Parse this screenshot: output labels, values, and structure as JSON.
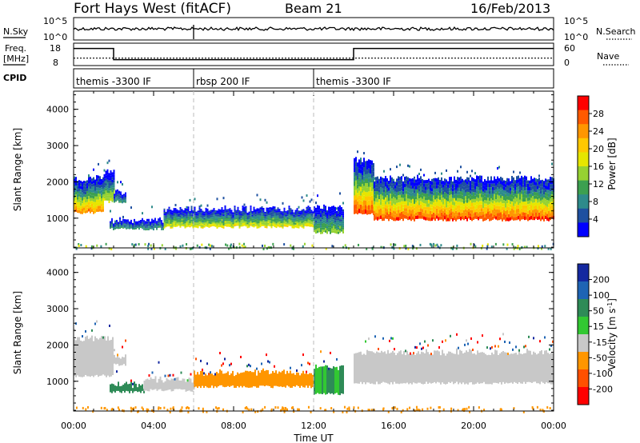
{
  "header": {
    "station": "Fort Hays West (fitACF)",
    "beam": "Beam 21",
    "date": "16/Feb/2013"
  },
  "nsky_panel": {
    "left_label": "N.Sky",
    "right_label": "N.Search",
    "left_ticks": [
      "10^5",
      "10^0"
    ],
    "right_ticks": [
      "10^5",
      "10^0"
    ]
  },
  "freq_panel": {
    "left_label_1": "Freq.",
    "left_label_2": "[MHz]",
    "right_label": "Nave",
    "left_ticks": [
      "18",
      "8"
    ],
    "right_ticks": [
      "60",
      "0"
    ]
  },
  "cpid_panel": {
    "label": "CPID",
    "segments": [
      {
        "start_hour": 0,
        "name": "themis -3300 IF"
      },
      {
        "start_hour": 6,
        "name": "rbsp 200 IF"
      },
      {
        "start_hour": 12,
        "name": "themis -3300 IF"
      }
    ]
  },
  "power_colorbar": {
    "label": "Power [dB]",
    "ticks": [
      "28",
      "24",
      "20",
      "16",
      "12",
      "8",
      "4"
    ],
    "colors": [
      "#ff0000",
      "#ff5a00",
      "#ff9600",
      "#ffc800",
      "#e6e600",
      "#96d232",
      "#3ca050",
      "#2e8b8b",
      "#1e50a0",
      "#0000ff"
    ]
  },
  "velocity_colorbar": {
    "label": "Velocity [m s",
    "label_sup": "-1",
    "label_end": "]",
    "ticks": [
      "200",
      "100",
      "50",
      "15",
      "-15",
      "-50",
      "-100",
      "-200"
    ],
    "colors": [
      "#1428a0",
      "#1e64b4",
      "#2e8b57",
      "#32c832",
      "#c8c8c8",
      "#ff9600",
      "#ff5000",
      "#ff0000"
    ]
  },
  "axes": {
    "ylabel": "Slant Range [km]",
    "xlabel": "Time UT",
    "yticks": [
      "1000",
      "2000",
      "3000",
      "4000"
    ],
    "xticks": [
      "00:00",
      "04:00",
      "08:00",
      "12:00",
      "16:00",
      "20:00",
      "00:00"
    ]
  },
  "chart_data": {
    "type": "heatmap",
    "title": "Fort Hays West (fitACF) Beam 21 16/Feb/2013",
    "xlabel": "Time UT",
    "ylabel": "Slant Range [km]",
    "xlim_hours": [
      0,
      24
    ],
    "ylim_km": [
      180,
      4500
    ],
    "yticks_km": [
      1000,
      2000,
      3000,
      4000
    ],
    "xticks_hours": [
      0,
      4,
      8,
      12,
      16,
      20,
      24
    ],
    "dashed_time_markers_hours": [
      6,
      12
    ],
    "frequency_mhz": [
      {
        "from_hour": 0,
        "to_hour": 2,
        "value": 16
      },
      {
        "from_hour": 2,
        "to_hour": 14,
        "value": 11
      },
      {
        "from_hour": 14,
        "to_hour": 24,
        "value": 16
      }
    ],
    "nave": [
      {
        "from_hour": 0,
        "to_hour": 24,
        "value": 20
      }
    ],
    "power_bands": [
      {
        "from_hour": 0.0,
        "to_hour": 1.5,
        "low_km": 1150,
        "high_km": 2100,
        "peak_db": 24
      },
      {
        "from_hour": 1.5,
        "to_hour": 2.0,
        "low_km": 1450,
        "high_km": 2250,
        "peak_db": 16
      },
      {
        "from_hour": 2.0,
        "to_hour": 2.6,
        "low_km": 1450,
        "high_km": 1750,
        "peak_db": 10
      },
      {
        "from_hour": 1.8,
        "to_hour": 4.5,
        "low_km": 700,
        "high_km": 950,
        "peak_db": 10
      },
      {
        "from_hour": 4.5,
        "to_hour": 12.0,
        "low_km": 750,
        "high_km": 1250,
        "peak_db": 18
      },
      {
        "from_hour": 12.0,
        "to_hour": 13.5,
        "low_km": 600,
        "high_km": 1300,
        "peak_db": 14
      },
      {
        "from_hour": 14.0,
        "to_hour": 15.0,
        "low_km": 1100,
        "high_km": 2600,
        "peak_db": 28
      },
      {
        "from_hour": 15.0,
        "to_hour": 24.0,
        "low_km": 950,
        "high_km": 2100,
        "peak_db": 28
      }
    ],
    "velocity_bands": [
      {
        "from_hour": 0.0,
        "to_hour": 2.0,
        "low_km": 1150,
        "high_km": 2200,
        "velocity": 0
      },
      {
        "from_hour": 2.0,
        "to_hour": 2.6,
        "low_km": 1450,
        "high_km": 1700,
        "velocity": 0
      },
      {
        "from_hour": 1.8,
        "to_hour": 3.5,
        "low_km": 700,
        "high_km": 900,
        "velocity": 40
      },
      {
        "from_hour": 3.5,
        "to_hour": 6.0,
        "low_km": 750,
        "high_km": 1050,
        "velocity": 0
      },
      {
        "from_hour": 6.0,
        "to_hour": 12.0,
        "low_km": 850,
        "high_km": 1250,
        "velocity": -40
      },
      {
        "from_hour": 12.0,
        "to_hour": 13.5,
        "low_km": 650,
        "high_km": 1400,
        "velocity": 30
      },
      {
        "from_hour": 14.0,
        "to_hour": 24.0,
        "low_km": 950,
        "high_km": 1800,
        "velocity": 0
      }
    ],
    "ground_scatter_range_km": [
      180,
      320
    ]
  }
}
